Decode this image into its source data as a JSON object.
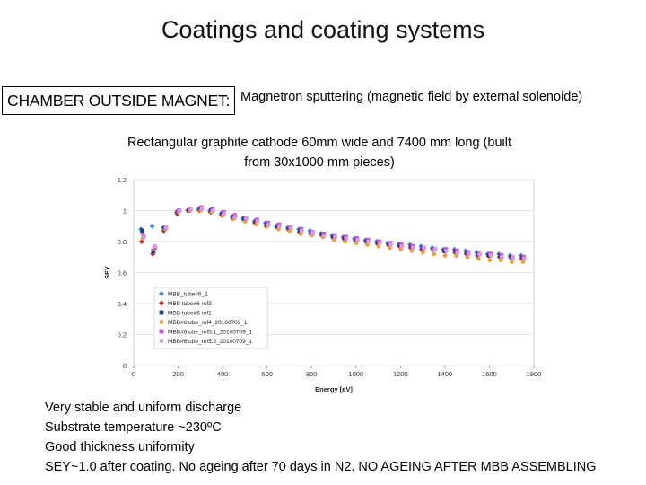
{
  "slide": {
    "title": "Coatings and coating systems",
    "chamber_label": "CHAMBER OUTSIDE MAGNET:",
    "magnetron_text": "Magnetron sputtering (magnetic field by external solenoide)",
    "cathode_line1": "Rectangular graphite cathode 60mm wide and 7400 mm long (built",
    "cathode_line2": "from 30x1000 mm pieces)",
    "bullets": [
      "Very stable and uniform discharge",
      "Substrate temperature ~230ºC",
      "Good thickness uniformity",
      "SEY~1.0 after coating. No ageing after 70 days in N2. NO AGEING AFTER MBB ASSEMBLING"
    ]
  },
  "chart_data": {
    "type": "scatter",
    "xlabel": "Energy [eV]",
    "ylabel": "SEY",
    "xlim": [
      0,
      1800
    ],
    "ylim": [
      0,
      1.2
    ],
    "xticks": [
      0,
      200,
      400,
      600,
      800,
      1000,
      1200,
      1400,
      1600,
      1800
    ],
    "yticks": [
      0,
      0.2,
      0.4,
      0.6,
      0.8,
      1,
      1.2
    ],
    "xtick_labels": [
      "0",
      "200",
      "400",
      "600",
      "800",
      "1000",
      "1200",
      "1400",
      "1600",
      "1800"
    ],
    "ytick_labels": [
      "0",
      "0.2",
      "0.4",
      "0.6",
      "0.8",
      "1",
      "1.2"
    ],
    "legend_position": "center-left",
    "x": [
      40,
      90,
      140,
      200,
      250,
      300,
      350,
      400,
      450,
      500,
      550,
      600,
      650,
      700,
      750,
      800,
      850,
      900,
      950,
      1000,
      1050,
      1100,
      1150,
      1200,
      1250,
      1300,
      1350,
      1400,
      1450,
      1500,
      1550,
      1600,
      1650,
      1700,
      1750
    ],
    "series": [
      {
        "name": "MBB_tube#6_1",
        "color": "#4a8fd6",
        "marker": "diamond",
        "values": [
          0.88,
          0.9,
          0.89,
          0.99,
          1.0,
          1.01,
          1.0,
          0.98,
          0.96,
          0.95,
          0.93,
          0.92,
          0.9,
          0.89,
          0.88,
          0.87,
          0.85,
          0.84,
          0.83,
          0.82,
          0.81,
          0.8,
          0.79,
          0.78,
          0.78,
          0.77,
          0.76,
          0.75,
          0.75,
          0.74,
          0.73,
          0.72,
          0.72,
          0.71,
          0.71
        ]
      },
      {
        "name": "MBB tube#6 ref3",
        "color": "#b0303a",
        "marker": "diamond",
        "values": [
          0.8,
          0.72,
          0.87,
          0.98,
          1.0,
          1.0,
          0.99,
          0.97,
          0.95,
          0.94,
          0.92,
          0.9,
          0.89,
          0.88,
          0.86,
          0.85,
          0.84,
          0.83,
          0.82,
          0.81,
          0.8,
          0.79,
          0.78,
          0.77,
          0.76,
          0.75,
          0.75,
          0.74,
          0.73,
          0.72,
          0.71,
          0.71,
          0.7,
          0.7,
          0.69
        ]
      },
      {
        "name": "MBB tube#6 ref1",
        "color": "#1f3f7a",
        "marker": "square",
        "values": [
          0.87,
          0.74,
          0.88,
          0.99,
          1.0,
          1.01,
          1.0,
          0.98,
          0.96,
          0.95,
          0.93,
          0.91,
          0.9,
          0.88,
          0.87,
          0.86,
          0.85,
          0.83,
          0.82,
          0.81,
          0.8,
          0.79,
          0.78,
          0.78,
          0.77,
          0.76,
          0.75,
          0.74,
          0.74,
          0.73,
          0.72,
          0.71,
          0.71,
          0.7,
          0.7
        ]
      },
      {
        "name": "MBB#6tube_ref4_20100709_1",
        "color": "#e8a040",
        "marker": "circle",
        "values": [
          0.82,
          0.75,
          0.88,
          0.99,
          1.0,
          1.0,
          0.99,
          0.97,
          0.95,
          0.93,
          0.91,
          0.9,
          0.88,
          0.87,
          0.85,
          0.84,
          0.83,
          0.81,
          0.8,
          0.79,
          0.78,
          0.77,
          0.76,
          0.75,
          0.74,
          0.73,
          0.72,
          0.71,
          0.71,
          0.7,
          0.69,
          0.68,
          0.68,
          0.67,
          0.67
        ]
      },
      {
        "name": "MBB#6tube_ref5.1_20100709_1",
        "color": "#c84fd8",
        "marker": "square",
        "values": [
          0.84,
          0.76,
          0.89,
          1.0,
          1.01,
          1.02,
          1.01,
          0.99,
          0.97,
          0.95,
          0.94,
          0.92,
          0.91,
          0.89,
          0.88,
          0.86,
          0.85,
          0.84,
          0.83,
          0.82,
          0.81,
          0.8,
          0.79,
          0.78,
          0.77,
          0.76,
          0.75,
          0.75,
          0.74,
          0.73,
          0.72,
          0.72,
          0.71,
          0.7,
          0.7
        ]
      },
      {
        "name": "MBB#6tube_ref5.2_20100709_1",
        "color": "#d89ad8",
        "marker": "circle",
        "values": [
          0.83,
          0.77,
          0.89,
          1.0,
          1.01,
          1.01,
          1.0,
          0.98,
          0.96,
          0.95,
          0.93,
          0.91,
          0.9,
          0.89,
          0.87,
          0.86,
          0.84,
          0.83,
          0.82,
          0.81,
          0.8,
          0.79,
          0.78,
          0.77,
          0.76,
          0.76,
          0.75,
          0.74,
          0.73,
          0.72,
          0.72,
          0.71,
          0.7,
          0.7,
          0.69
        ]
      }
    ]
  }
}
